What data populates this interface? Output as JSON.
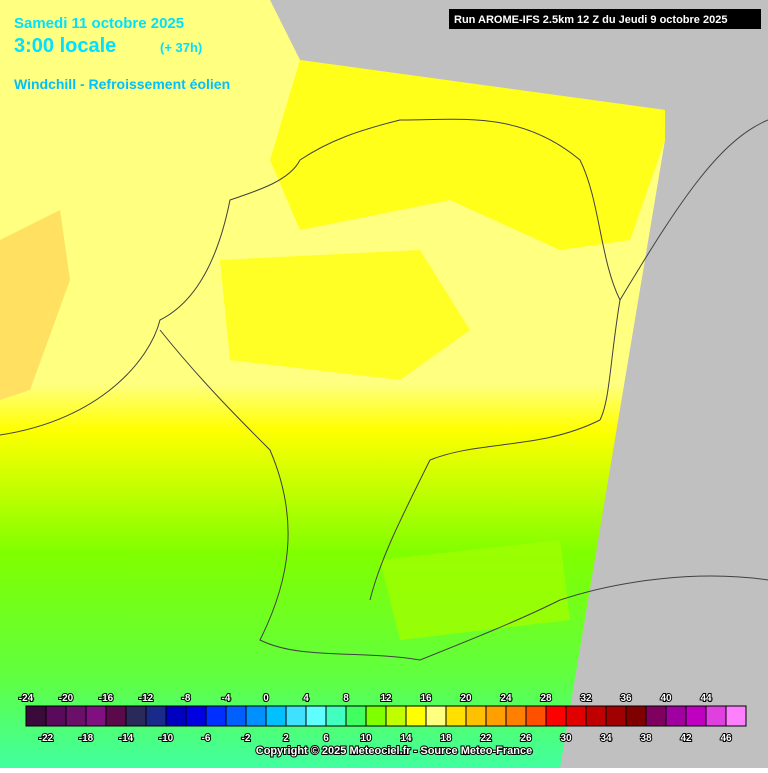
{
  "header": {
    "date": "Samedi 11 octobre 2025",
    "time": "3:00 locale",
    "lead": "(+ 37h)",
    "product": "Windchill - Refroissement éolien",
    "run": "Run AROME-IFS 2.5km 12 Z du Jeudi 9 octobre 2025"
  },
  "legend": {
    "labels": [
      -24,
      -22,
      -20,
      -18,
      -16,
      -14,
      -12,
      -10,
      -8,
      -6,
      -4,
      -2,
      0,
      2,
      4,
      6,
      8,
      10,
      12,
      14,
      16,
      18,
      20,
      22,
      24,
      26,
      28,
      30,
      32,
      34,
      36,
      38,
      40,
      42,
      44,
      46
    ],
    "colors": [
      "#3a0a3a",
      "#5a0a5a",
      "#6a106a",
      "#801080",
      "#5a0a4a",
      "#2a2a5a",
      "#1a2a8a",
      "#0000c0",
      "#0000e0",
      "#0030ff",
      "#0060ff",
      "#0090ff",
      "#00c0ff",
      "#40e0ff",
      "#60ffff",
      "#40ffc0",
      "#40ff60",
      "#80ff00",
      "#c0ff00",
      "#ffff00",
      "#ffff80",
      "#ffe000",
      "#ffc000",
      "#ffa000",
      "#ff8000",
      "#ff5000",
      "#ff0000",
      "#e00000",
      "#c00000",
      "#a00000",
      "#800000",
      "#800060",
      "#a000a0",
      "#c000c0",
      "#e040e0",
      "#ff80ff"
    ]
  },
  "footer": {
    "copyright": "Copyright © 2025 Meteociel.fr - Source Meteo-France"
  }
}
